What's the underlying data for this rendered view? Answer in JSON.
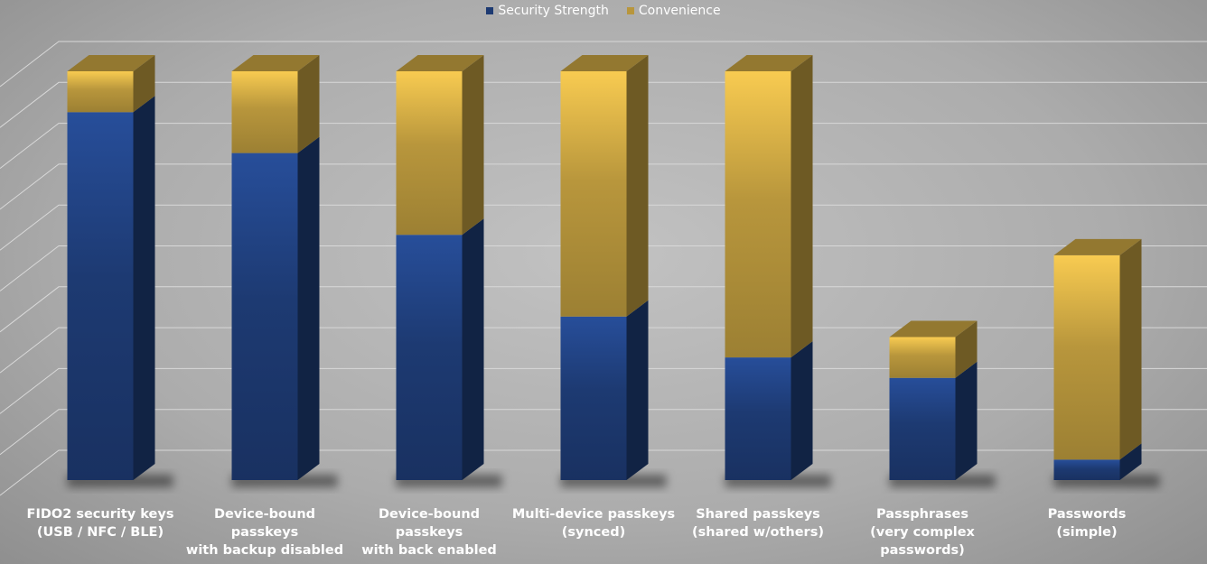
{
  "chart_data": {
    "type": "bar",
    "stacked": true,
    "categories": [
      "FIDO2 security keys\n(USB / NFC / BLE)",
      "Device-bound\npasskeys\nwith backup disabled",
      "Device-bound\npasskeys\nwith back enabled",
      "Multi-device passkeys\n(synced)",
      "Shared passkeys\n(shared w/others)",
      "Passphrases\n(very complex\npasswords)",
      "Passwords\n(simple)"
    ],
    "series": [
      {
        "name": "Security Strength",
        "color": "#1d3a72",
        "values": [
          9,
          8,
          6,
          4,
          3,
          2.5,
          0.5
        ]
      },
      {
        "name": "Convenience",
        "color": "#b8963c",
        "values": [
          1,
          2,
          4,
          6,
          7,
          1,
          5
        ]
      }
    ],
    "ylim": [
      0,
      10
    ],
    "yticks": [
      0,
      1,
      2,
      3,
      4,
      5,
      6,
      7,
      8,
      9,
      10
    ],
    "grid": true,
    "legend": "top"
  }
}
